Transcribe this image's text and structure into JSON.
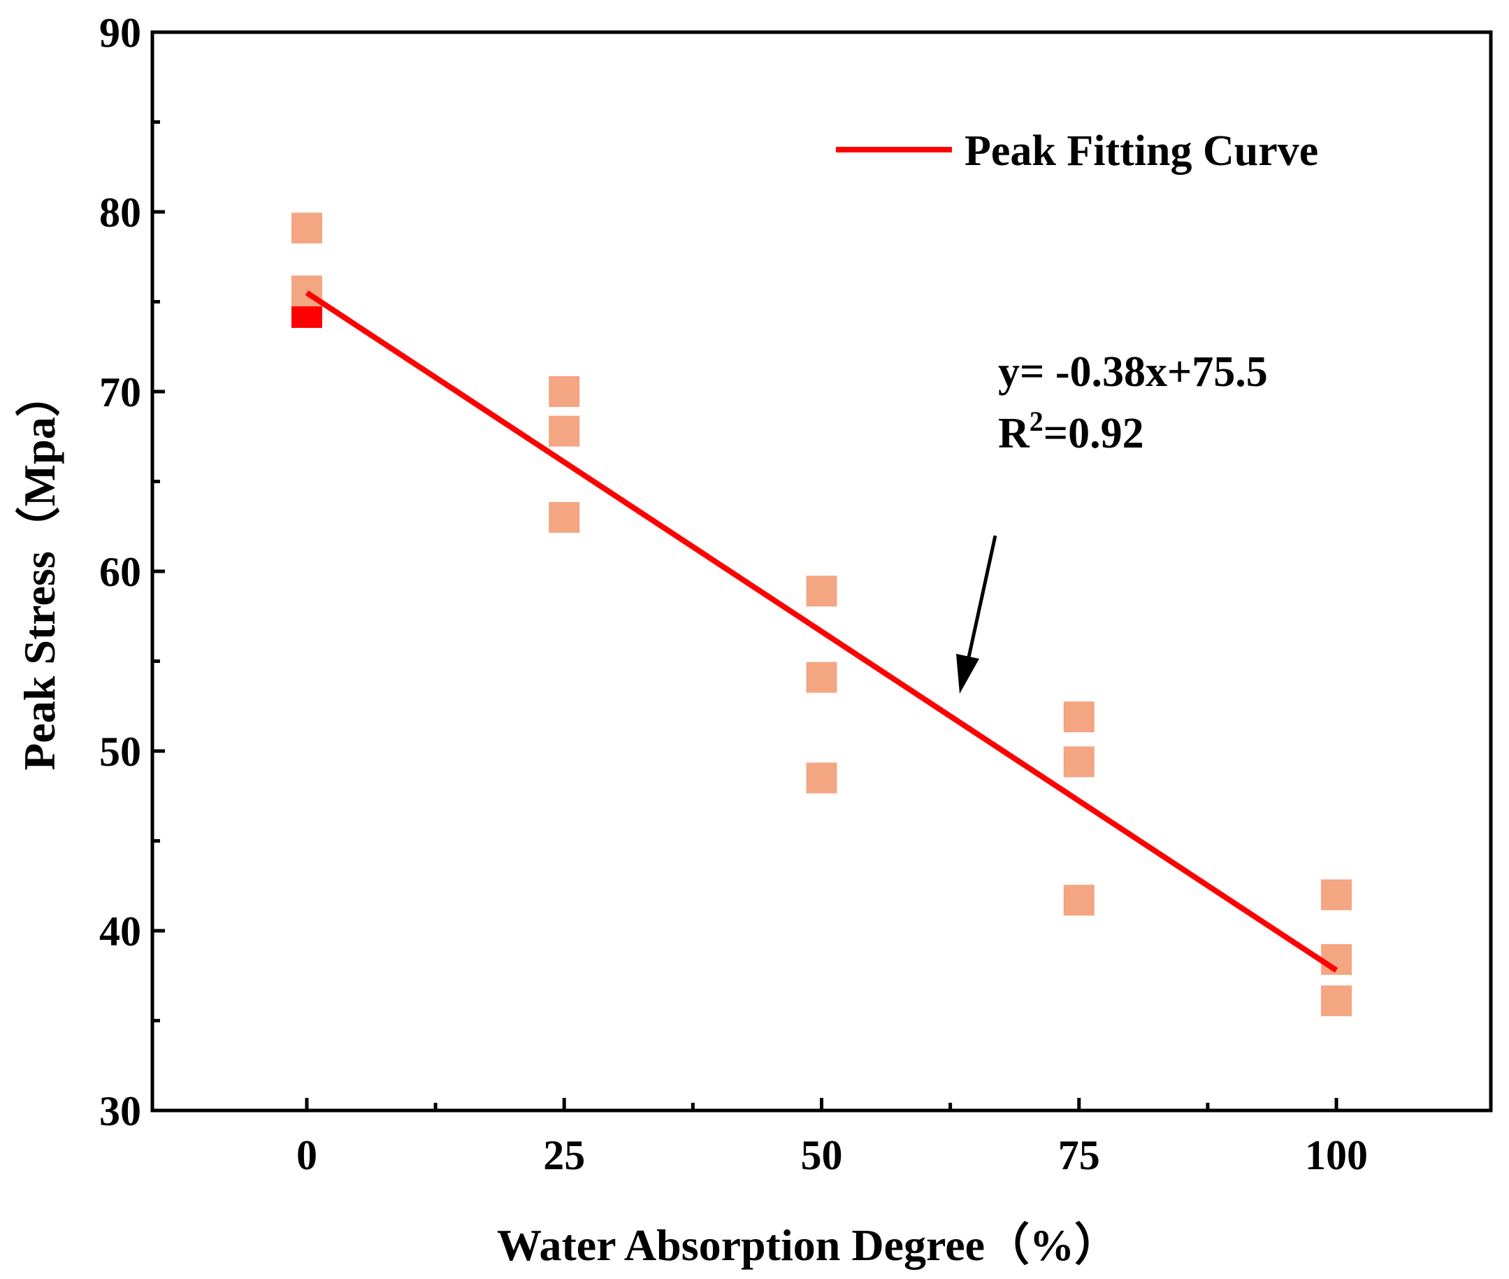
{
  "chart_data": {
    "type": "scatter",
    "xlabel": "Water Absorption Degree（%）",
    "ylabel": "Peak Stress（Mpa）",
    "xlim": [
      -15,
      115
    ],
    "ylim": [
      30,
      90
    ],
    "x_ticks": [
      "0",
      "25",
      "50",
      "75",
      "100"
    ],
    "y_ticks": [
      "30",
      "40",
      "50",
      "60",
      "70",
      "80",
      "90"
    ],
    "grid": false,
    "legend": {
      "position": "top-right",
      "entries": [
        "Peak Fitting Curve"
      ]
    },
    "points": [
      {
        "x": 0,
        "y": 79.1
      },
      {
        "x": 0,
        "y": 75.6
      },
      {
        "x": 0,
        "y": 74.4
      },
      {
        "x": 25,
        "y": 70.0
      },
      {
        "x": 25,
        "y": 67.8
      },
      {
        "x": 25,
        "y": 63.0
      },
      {
        "x": 50,
        "y": 58.9
      },
      {
        "x": 50,
        "y": 54.1
      },
      {
        "x": 50,
        "y": 48.5
      },
      {
        "x": 75,
        "y": 51.9
      },
      {
        "x": 75,
        "y": 49.4
      },
      {
        "x": 75,
        "y": 41.7
      },
      {
        "x": 100,
        "y": 42.0
      },
      {
        "x": 100,
        "y": 38.4
      },
      {
        "x": 100,
        "y": 36.1
      }
    ],
    "highlight_point": {
      "x": 0,
      "y": 74.4
    },
    "fit_line": {
      "name": "Peak Fitting Curve",
      "x": [
        0,
        100
      ],
      "y": [
        75.5,
        37.8
      ]
    },
    "annotation": {
      "equation": "y= -0.38x+75.5",
      "r2_prefix": "R",
      "r2_sup": "2",
      "r2_value": "=0.92"
    },
    "colors": {
      "point": "#f4a582",
      "highlight": "#ff0000",
      "line": "#ff0000",
      "axis": "#000000"
    }
  }
}
